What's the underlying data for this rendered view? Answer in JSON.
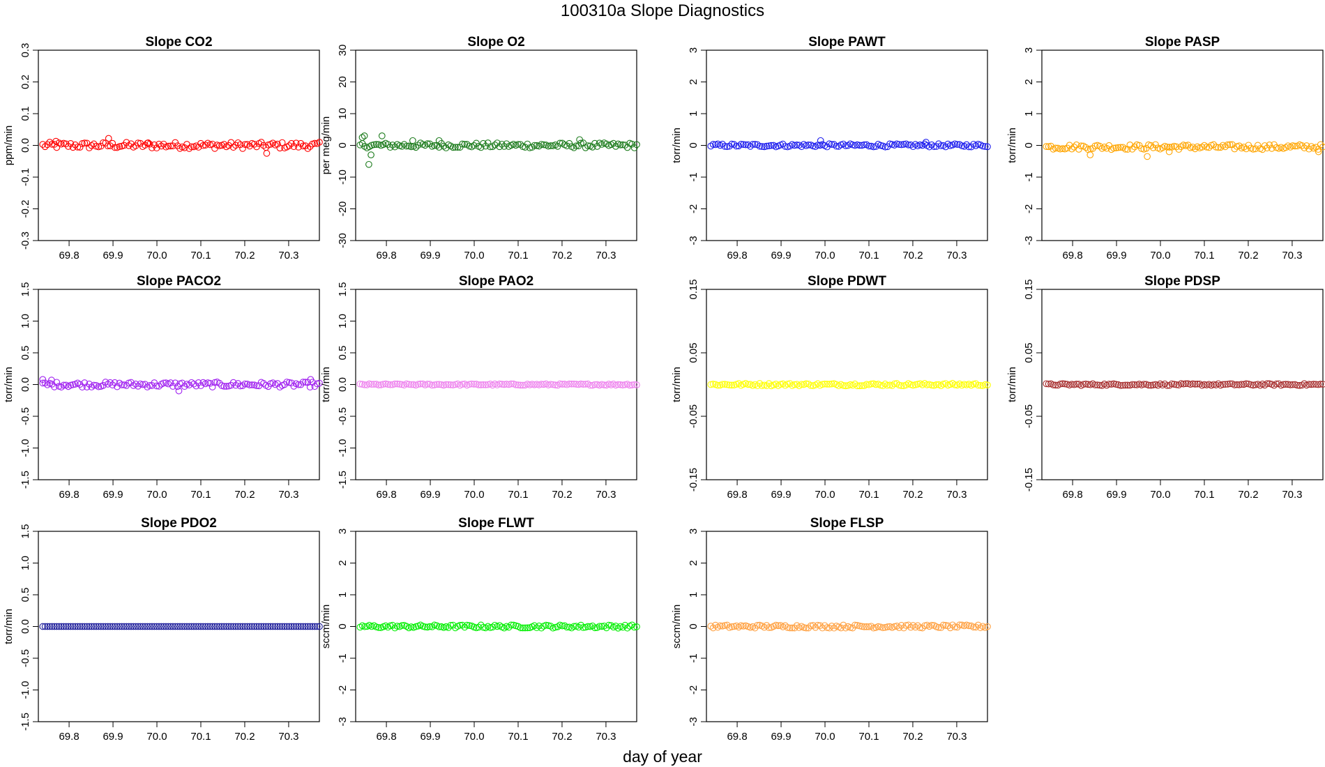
{
  "figure": {
    "title": "100310a   Slope Diagnostics",
    "xlabel": "day of year"
  },
  "chart_data": [
    {
      "type": "scatter",
      "title": "Slope CO2",
      "ylabel": "ppm/min",
      "color": "#ff0000",
      "xlim": [
        69.73,
        70.37
      ],
      "ylim": [
        -0.3,
        0.3
      ],
      "yticks": [
        -0.3,
        -0.2,
        -0.1,
        0.0,
        0.1,
        0.2,
        0.3
      ],
      "yticklabels": [
        "-0.3",
        "-0.2",
        "-0.1",
        "0.0",
        "0.1",
        "0.2",
        "0.3"
      ],
      "xticks": [
        69.8,
        69.9,
        70.0,
        70.1,
        70.2,
        70.3
      ],
      "xticklabels": [
        "69.8",
        "69.9",
        "70.0",
        "70.1",
        "70.2",
        "70.3"
      ],
      "x_range": [
        69.74,
        70.37
      ],
      "n_points": 120,
      "baseline": 0.0,
      "noise": 0.01,
      "outliers": [
        [
          69.77,
          0.013
        ],
        [
          69.89,
          0.022
        ],
        [
          69.98,
          0.008
        ],
        [
          70.25,
          -0.025
        ]
      ]
    },
    {
      "type": "scatter",
      "title": "Slope O2",
      "ylabel": "per meg/min",
      "color": "#1a7a1a",
      "xlim": [
        69.73,
        70.37
      ],
      "ylim": [
        -30,
        30
      ],
      "yticks": [
        -30,
        -20,
        -10,
        0,
        10,
        20,
        30
      ],
      "yticklabels": [
        "-30",
        "-20",
        "-10",
        "0",
        "10",
        "20",
        "30"
      ],
      "xticks": [
        69.8,
        69.9,
        70.0,
        70.1,
        70.2,
        70.3
      ],
      "xticklabels": [
        "69.8",
        "69.9",
        "70.0",
        "70.1",
        "70.2",
        "70.3"
      ],
      "x_range": [
        69.74,
        70.37
      ],
      "n_points": 120,
      "baseline": 0.0,
      "noise": 0.8,
      "outliers": [
        [
          69.745,
          2.5
        ],
        [
          69.75,
          3.0
        ],
        [
          69.76,
          -6.0
        ],
        [
          69.765,
          -3.0
        ],
        [
          69.79,
          3.0
        ],
        [
          69.86,
          1.5
        ],
        [
          69.92,
          1.5
        ],
        [
          70.24,
          1.8
        ]
      ]
    },
    {
      "type": "scatter",
      "title": "Slope PAWT",
      "ylabel": "torr/min",
      "color": "#1a1aee",
      "xlim": [
        69.73,
        70.37
      ],
      "ylim": [
        -3,
        3
      ],
      "yticks": [
        -3,
        -2,
        -1,
        0,
        1,
        2,
        3
      ],
      "yticklabels": [
        "-3",
        "-2",
        "-1",
        "0",
        "1",
        "2",
        "3"
      ],
      "xticks": [
        69.8,
        69.9,
        70.0,
        70.1,
        70.2,
        70.3
      ],
      "xticklabels": [
        "69.8",
        "69.9",
        "70.0",
        "70.1",
        "70.2",
        "70.3"
      ],
      "x_range": [
        69.74,
        70.37
      ],
      "n_points": 120,
      "baseline": 0.0,
      "noise": 0.05,
      "outliers": [
        [
          69.99,
          0.15
        ],
        [
          70.23,
          0.1
        ]
      ]
    },
    {
      "type": "scatter",
      "title": "Slope PASP",
      "ylabel": "torr/min",
      "color": "#ffa500",
      "xlim": [
        69.73,
        70.37
      ],
      "ylim": [
        -3,
        3
      ],
      "yticks": [
        -3,
        -2,
        -1,
        0,
        1,
        2,
        3
      ],
      "yticklabels": [
        "-3",
        "-2",
        "-1",
        "0",
        "1",
        "2",
        "3"
      ],
      "xticks": [
        69.8,
        69.9,
        70.0,
        70.1,
        70.2,
        70.3
      ],
      "xticklabels": [
        "69.8",
        "69.9",
        "70.0",
        "70.1",
        "70.2",
        "70.3"
      ],
      "x_range": [
        69.74,
        70.37
      ],
      "n_points": 120,
      "baseline": -0.05,
      "noise": 0.08,
      "outliers": [
        [
          69.84,
          -0.3
        ],
        [
          69.97,
          -0.35
        ],
        [
          70.02,
          -0.2
        ],
        [
          70.36,
          -0.2
        ]
      ]
    },
    {
      "type": "scatter",
      "title": "Slope PACO2",
      "ylabel": "torr/min",
      "color": "#a020f0",
      "xlim": [
        69.73,
        70.37
      ],
      "ylim": [
        -1.5,
        1.5
      ],
      "yticks": [
        -1.5,
        -1.0,
        -0.5,
        0.0,
        0.5,
        1.0,
        1.5
      ],
      "yticklabels": [
        "-1.5",
        "-1.0",
        "-0.5",
        "0.0",
        "0.5",
        "1.0",
        "1.5"
      ],
      "xticks": [
        69.8,
        69.9,
        70.0,
        70.1,
        70.2,
        70.3
      ],
      "xticklabels": [
        "69.8",
        "69.9",
        "70.0",
        "70.1",
        "70.2",
        "70.3"
      ],
      "x_range": [
        69.74,
        70.37
      ],
      "n_points": 120,
      "baseline": 0.0,
      "noise": 0.04,
      "outliers": [
        [
          69.74,
          0.08
        ],
        [
          69.76,
          0.07
        ],
        [
          70.05,
          -0.1
        ],
        [
          70.35,
          0.08
        ]
      ]
    },
    {
      "type": "scatter",
      "title": "Slope PAO2",
      "ylabel": "torr/min",
      "color": "#ee82ee",
      "xlim": [
        69.73,
        70.37
      ],
      "ylim": [
        -1.5,
        1.5
      ],
      "yticks": [
        -1.5,
        -1.0,
        -0.5,
        0.0,
        0.5,
        1.0,
        1.5
      ],
      "yticklabels": [
        "-1.5",
        "-1.0",
        "-0.5",
        "0.0",
        "0.5",
        "1.0",
        "1.5"
      ],
      "xticks": [
        69.8,
        69.9,
        70.0,
        70.1,
        70.2,
        70.3
      ],
      "xticklabels": [
        "69.8",
        "69.9",
        "70.0",
        "70.1",
        "70.2",
        "70.3"
      ],
      "x_range": [
        69.74,
        70.37
      ],
      "n_points": 120,
      "baseline": 0.0,
      "noise": 0.012,
      "outliers": []
    },
    {
      "type": "scatter",
      "title": "Slope PDWT",
      "ylabel": "torr/min",
      "color": "#ffff00",
      "xlim": [
        69.73,
        70.37
      ],
      "ylim": [
        -0.15,
        0.15
      ],
      "yticks": [
        -0.15,
        -0.05,
        0.05,
        0.15
      ],
      "yticklabels": [
        "-0.15",
        "-0.05",
        "0.05",
        "0.15"
      ],
      "xticks": [
        69.8,
        69.9,
        70.0,
        70.1,
        70.2,
        70.3
      ],
      "xticklabels": [
        "69.8",
        "69.9",
        "70.0",
        "70.1",
        "70.2",
        "70.3"
      ],
      "x_range": [
        69.74,
        70.37
      ],
      "n_points": 120,
      "baseline": 0.0,
      "noise": 0.002,
      "outliers": []
    },
    {
      "type": "scatter",
      "title": "Slope PDSP",
      "ylabel": "torr/min",
      "color": "#a52a2a",
      "xlim": [
        69.73,
        70.37
      ],
      "ylim": [
        -0.15,
        0.15
      ],
      "yticks": [
        -0.15,
        -0.05,
        0.05,
        0.15
      ],
      "yticklabels": [
        "-0.15",
        "-0.05",
        "0.05",
        "0.15"
      ],
      "xticks": [
        69.8,
        69.9,
        70.0,
        70.1,
        70.2,
        70.3
      ],
      "xticklabels": [
        "69.8",
        "69.9",
        "70.0",
        "70.1",
        "70.2",
        "70.3"
      ],
      "x_range": [
        69.74,
        70.37
      ],
      "n_points": 120,
      "baseline": 0.0,
      "noise": 0.0015,
      "outliers": []
    },
    {
      "type": "scatter",
      "title": "Slope PDO2",
      "ylabel": "torr/min",
      "color": "#1a1a99",
      "xlim": [
        69.73,
        70.37
      ],
      "ylim": [
        -1.5,
        1.5
      ],
      "yticks": [
        -1.5,
        -1.0,
        -0.5,
        0.0,
        0.5,
        1.0,
        1.5
      ],
      "yticklabels": [
        "-1.5",
        "-1.0",
        "-0.5",
        "0.0",
        "0.5",
        "1.0",
        "1.5"
      ],
      "xticks": [
        69.8,
        69.9,
        70.0,
        70.1,
        70.2,
        70.3
      ],
      "xticklabels": [
        "69.8",
        "69.9",
        "70.0",
        "70.1",
        "70.2",
        "70.3"
      ],
      "x_range": [
        69.74,
        70.37
      ],
      "n_points": 120,
      "baseline": 0.0,
      "noise": 0.0,
      "outliers": []
    },
    {
      "type": "scatter",
      "title": "Slope FLWT",
      "ylabel": "sccm/min",
      "color": "#00ee00",
      "xlim": [
        69.73,
        70.37
      ],
      "ylim": [
        -3,
        3
      ],
      "yticks": [
        -3,
        -2,
        -1,
        0,
        1,
        2,
        3
      ],
      "yticklabels": [
        "-3",
        "-2",
        "-1",
        "0",
        "1",
        "2",
        "3"
      ],
      "xticks": [
        69.8,
        69.9,
        70.0,
        70.1,
        70.2,
        70.3
      ],
      "xticklabels": [
        "69.8",
        "69.9",
        "70.0",
        "70.1",
        "70.2",
        "70.3"
      ],
      "x_range": [
        69.74,
        70.37
      ],
      "n_points": 120,
      "baseline": 0.0,
      "noise": 0.05,
      "outliers": []
    },
    {
      "type": "scatter",
      "title": "Slope FLSP",
      "ylabel": "sccm/min",
      "color": "#ffa040",
      "xlim": [
        69.73,
        70.37
      ],
      "ylim": [
        -3,
        3
      ],
      "yticks": [
        -3,
        -2,
        -1,
        0,
        1,
        2,
        3
      ],
      "yticklabels": [
        "-3",
        "-2",
        "-1",
        "0",
        "1",
        "2",
        "3"
      ],
      "xticks": [
        69.8,
        69.9,
        70.0,
        70.1,
        70.2,
        70.3
      ],
      "xticklabels": [
        "69.8",
        "69.9",
        "70.0",
        "70.1",
        "70.2",
        "70.3"
      ],
      "x_range": [
        69.74,
        70.37
      ],
      "n_points": 120,
      "baseline": 0.0,
      "noise": 0.05,
      "outliers": []
    }
  ]
}
